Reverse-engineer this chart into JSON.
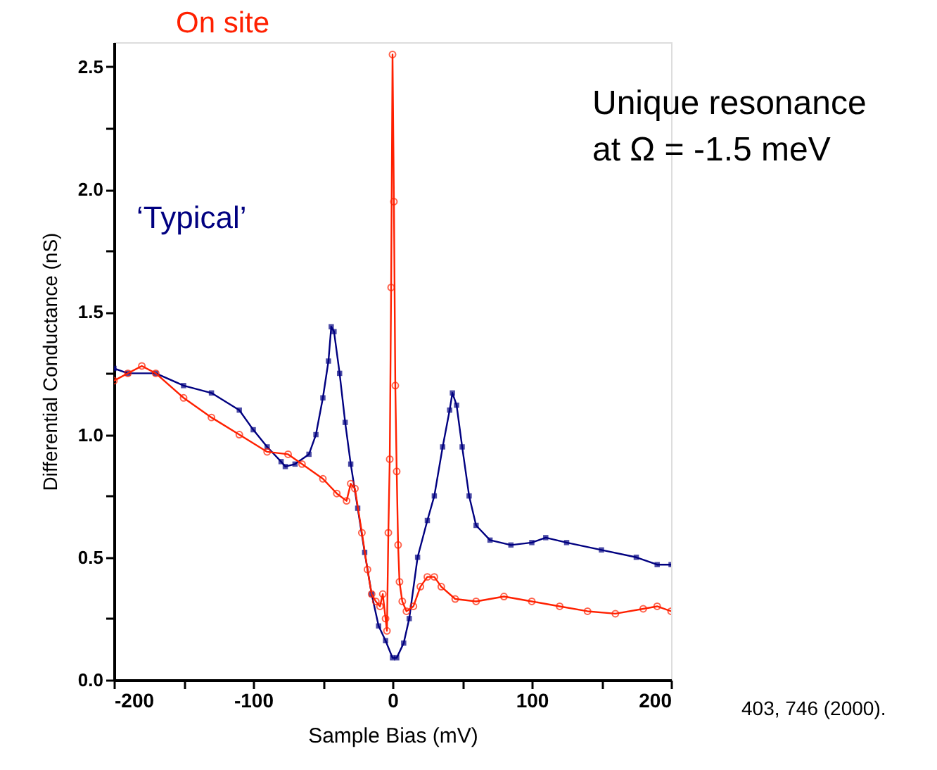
{
  "chart_data": {
    "type": "line",
    "title": null,
    "xlabel": "Sample Bias (mV)",
    "ylabel": "Differential Conductance (nS)",
    "xlim": [
      -200,
      200
    ],
    "ylim": [
      0,
      2.6
    ],
    "xticks": [
      -200,
      {
        "value": -150,
        "label": null
      },
      -100,
      {
        "value": -50,
        "label": null
      },
      0,
      {
        "value": 50,
        "label": null
      },
      100,
      {
        "value": 150,
        "label": null
      },
      200
    ],
    "yticks": [
      {
        "value": 0,
        "label": "0.0"
      },
      {
        "value": 0.25,
        "label": null
      },
      {
        "value": 0.5,
        "label": "0.5"
      },
      {
        "value": 0.75,
        "label": null
      },
      {
        "value": 1,
        "label": "1.0"
      },
      {
        "value": 1.25,
        "label": null
      },
      {
        "value": 1.5,
        "label": "1.5"
      },
      {
        "value": 1.75,
        "label": null
      },
      {
        "value": 2,
        "label": "2.0"
      },
      {
        "value": 2.25,
        "label": null
      },
      {
        "value": 2.5,
        "label": "2.5"
      }
    ],
    "grid": false,
    "series": [
      {
        "name": "‘Typical’",
        "color": "#000080",
        "marker": "square",
        "x": [
          -200,
          -190,
          -170,
          -150,
          -130,
          -110,
          -100,
          -90,
          -80,
          -77,
          -70,
          -60,
          -55,
          -50,
          -46,
          -44,
          -42,
          -38,
          -34,
          -30,
          -25,
          -20,
          -15,
          -10,
          -5,
          0,
          3,
          8,
          12,
          18,
          25,
          30,
          36,
          41,
          43,
          46,
          50,
          55,
          60,
          70,
          85,
          100,
          110,
          125,
          150,
          175,
          190,
          200
        ],
        "values": [
          1.27,
          1.25,
          1.25,
          1.2,
          1.17,
          1.1,
          1.02,
          0.95,
          0.89,
          0.87,
          0.88,
          0.92,
          1.0,
          1.15,
          1.3,
          1.44,
          1.42,
          1.25,
          1.05,
          0.88,
          0.7,
          0.52,
          0.35,
          0.22,
          0.16,
          0.09,
          0.09,
          0.15,
          0.25,
          0.5,
          0.65,
          0.75,
          0.95,
          1.1,
          1.17,
          1.12,
          0.95,
          0.75,
          0.63,
          0.57,
          0.55,
          0.56,
          0.58,
          0.56,
          0.53,
          0.5,
          0.47,
          0.47
        ]
      },
      {
        "name": "On site",
        "color": "#ff2000",
        "marker": "circle",
        "x": [
          -200,
          -190,
          -180,
          -170,
          -150,
          -130,
          -110,
          -90,
          -75,
          -65,
          -50,
          -40,
          -33,
          -30,
          -27,
          -22,
          -18,
          -15,
          -12,
          -9,
          -7,
          -5,
          -4,
          -3,
          -2,
          -1,
          0,
          1,
          2,
          3,
          4,
          5,
          7,
          10,
          15,
          20,
          25,
          30,
          35,
          45,
          60,
          80,
          100,
          120,
          140,
          160,
          180,
          190,
          200
        ],
        "values": [
          1.22,
          1.25,
          1.28,
          1.25,
          1.15,
          1.07,
          1.0,
          0.93,
          0.92,
          0.88,
          0.82,
          0.76,
          0.73,
          0.8,
          0.78,
          0.6,
          0.45,
          0.35,
          0.32,
          0.3,
          0.35,
          0.25,
          0.2,
          0.6,
          0.9,
          1.6,
          2.55,
          1.95,
          1.2,
          0.85,
          0.55,
          0.4,
          0.32,
          0.28,
          0.3,
          0.38,
          0.42,
          0.42,
          0.38,
          0.33,
          0.32,
          0.34,
          0.32,
          0.3,
          0.28,
          0.27,
          0.29,
          0.3,
          0.28
        ]
      }
    ],
    "annotations": [
      "Unique resonance",
      "at Ω = -1.5 meV",
      "403, 746 (2000)."
    ]
  }
}
